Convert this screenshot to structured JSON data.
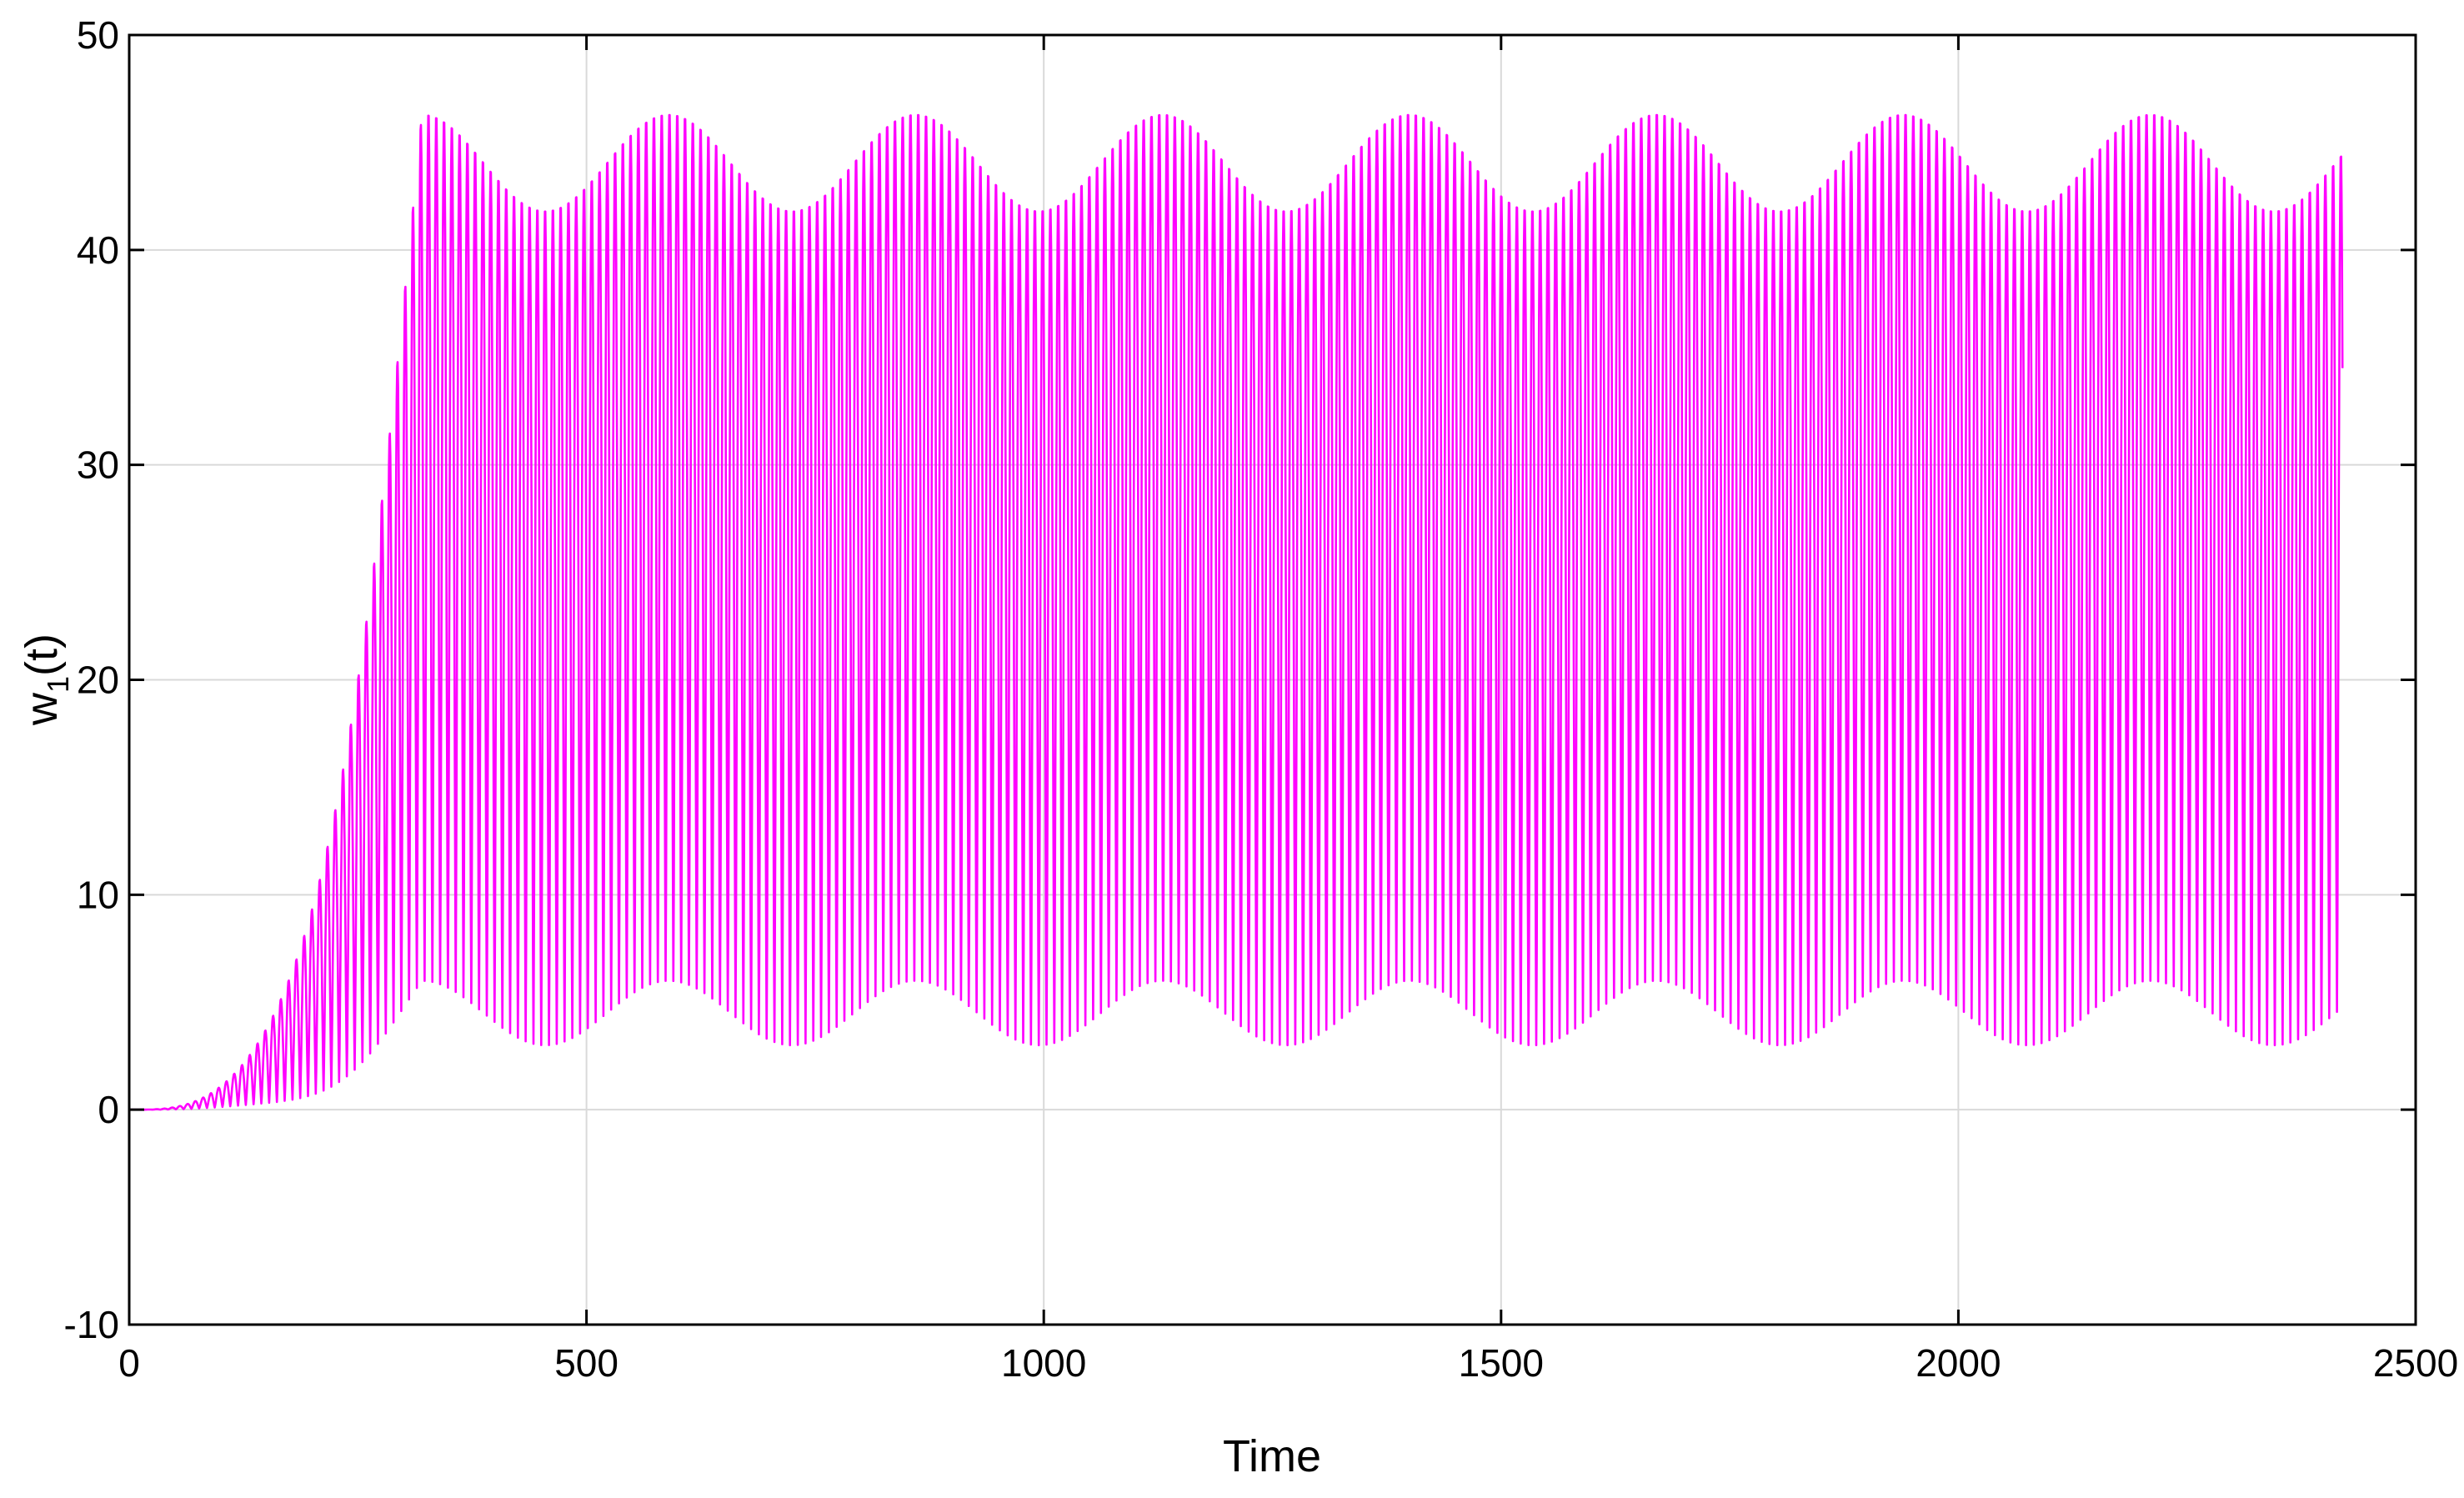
{
  "chart_data": {
    "type": "line",
    "title": "",
    "xlabel": "Time",
    "ylabel_main": "w",
    "ylabel_sub": "1",
    "ylabel_tail": "(t)",
    "xlim": [
      0,
      2500
    ],
    "ylim": [
      -10,
      50
    ],
    "xticks": [
      0,
      500,
      1000,
      1500,
      2000,
      2500
    ],
    "xtick_labels": [
      "0",
      "500",
      "1000",
      "1500",
      "2000",
      "2500"
    ],
    "yticks": [
      -10,
      0,
      10,
      20,
      30,
      40,
      50
    ],
    "ytick_labels": [
      "-10",
      "0",
      "10",
      "20",
      "30",
      "40",
      "50"
    ],
    "grid": true,
    "legend": "none",
    "series": [
      {
        "color": "#ff00ff",
        "style": "dense fast oscillation",
        "oscillation_period": 8.5,
        "t_range": [
          0,
          2420
        ],
        "envelope_period": 270,
        "steady_state_max_range": [
          42,
          46.5
        ],
        "steady_state_min_range": [
          3,
          6
        ],
        "growth_phase_end": 320,
        "initial_value": 0
      }
    ],
    "colors": {
      "line": "#ff00ff",
      "grid": "#d9d9d9",
      "axis": "#000000",
      "background": "#ffffff"
    }
  }
}
